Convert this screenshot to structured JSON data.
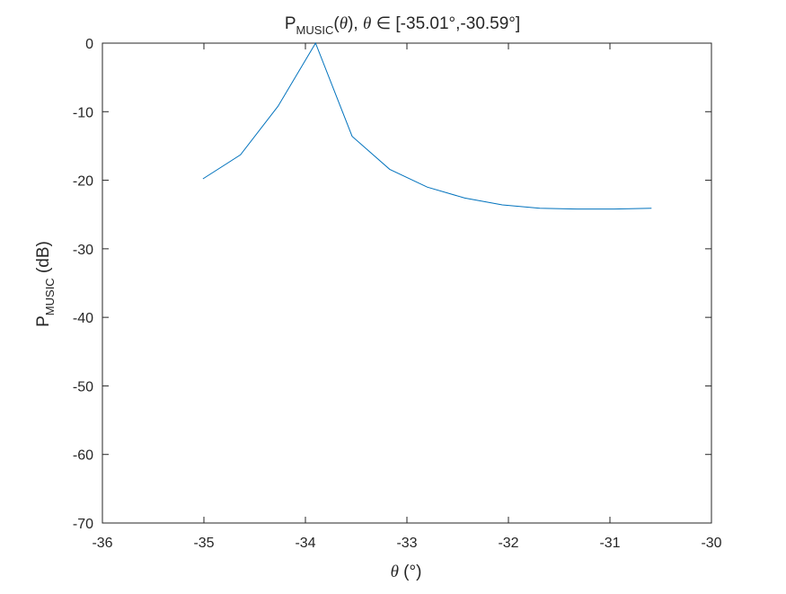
{
  "chart_data": {
    "type": "line",
    "title": {
      "prefix": "P",
      "subscript": "MUSIC",
      "open_paren": "(",
      "theta": "θ",
      "after_theta": "), ",
      "theta2": "θ",
      "element_of": " ∈ ",
      "range_text": "[-35.01°,-30.59°]"
    },
    "xlabel": {
      "symbol": "θ",
      "unit": " (°)"
    },
    "ylabel": {
      "prefix": "P",
      "subscript": "MUSIC",
      "suffix": " (dB)"
    },
    "xlim": [
      -36,
      -30
    ],
    "ylim": [
      -70,
      0
    ],
    "xticks": [
      -36,
      -35,
      -34,
      -33,
      -32,
      -31,
      -30
    ],
    "yticks": [
      0,
      -10,
      -20,
      -30,
      -40,
      -50,
      -60,
      -70
    ],
    "grid": false,
    "series": [
      {
        "color": "#0072BD",
        "x": [
          -35.01,
          -34.64,
          -34.27,
          -33.9,
          -33.54,
          -33.17,
          -32.8,
          -32.43,
          -32.06,
          -31.69,
          -31.32,
          -30.96,
          -30.59
        ],
        "y": [
          -19.8,
          -16.3,
          -9.2,
          0.0,
          -13.6,
          -18.4,
          -21.0,
          -22.6,
          -23.6,
          -24.1,
          -24.2,
          -24.2,
          -24.1
        ]
      }
    ]
  }
}
